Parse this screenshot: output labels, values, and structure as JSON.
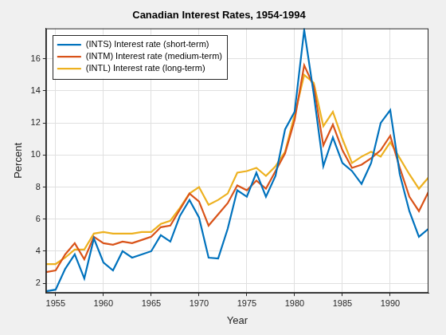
{
  "chart_data": {
    "type": "line",
    "title": "Canadian Interest Rates, 1954-1994",
    "x_label": "Year",
    "y_label": "Percent",
    "x": [
      1954,
      1955,
      1956,
      1957,
      1958,
      1959,
      1960,
      1961,
      1962,
      1963,
      1964,
      1965,
      1966,
      1967,
      1968,
      1969,
      1970,
      1971,
      1972,
      1973,
      1974,
      1975,
      1976,
      1977,
      1978,
      1979,
      1980,
      1981,
      1982,
      1983,
      1984,
      1985,
      1986,
      1987,
      1988,
      1989,
      1990,
      1991,
      1992,
      1993,
      1994
    ],
    "series": [
      {
        "name": "(INTS) Interest rate (short-term)",
        "color": "#0072bd",
        "values": [
          1.5,
          1.6,
          2.9,
          3.8,
          2.3,
          4.8,
          3.3,
          2.8,
          4.0,
          3.6,
          3.8,
          4.0,
          5.0,
          4.6,
          6.2,
          7.2,
          6.1,
          3.6,
          3.55,
          5.4,
          7.8,
          7.4,
          8.9,
          7.4,
          8.7,
          11.6,
          12.7,
          17.8,
          13.8,
          9.3,
          11.1,
          9.5,
          9.0,
          8.2,
          9.5,
          12.0,
          12.8,
          8.8,
          6.5,
          4.9,
          5.4
        ]
      },
      {
        "name": "(INTM) Interest rate (medium-term)",
        "color": "#d95319",
        "values": [
          2.7,
          2.8,
          3.8,
          4.5,
          3.5,
          4.9,
          4.5,
          4.4,
          4.6,
          4.5,
          4.7,
          4.9,
          5.5,
          5.6,
          6.6,
          7.6,
          7.1,
          5.6,
          6.3,
          7.0,
          8.1,
          7.8,
          8.4,
          7.9,
          9.0,
          10.1,
          12.2,
          15.6,
          14.3,
          10.6,
          11.9,
          10.3,
          9.2,
          9.4,
          9.8,
          10.3,
          11.2,
          9.2,
          7.4,
          6.5,
          7.7
        ]
      },
      {
        "name": "(INTL) Interest rate (long-term)",
        "color": "#edb120",
        "values": [
          3.2,
          3.2,
          3.6,
          4.1,
          4.1,
          5.1,
          5.2,
          5.1,
          5.1,
          5.1,
          5.2,
          5.2,
          5.7,
          5.9,
          6.7,
          7.6,
          8.0,
          6.9,
          7.2,
          7.6,
          8.9,
          9.0,
          9.2,
          8.7,
          9.3,
          10.2,
          12.5,
          15.0,
          14.5,
          11.8,
          12.7,
          11.0,
          9.5,
          9.9,
          10.2,
          9.9,
          10.8,
          9.8,
          8.8,
          7.9,
          8.6
        ]
      }
    ],
    "xlim": [
      1954,
      1994
    ],
    "xticks": [
      1955,
      1960,
      1965,
      1970,
      1975,
      1980,
      1985,
      1990
    ],
    "ylim": [
      1.4,
      17.9
    ],
    "yticks": [
      2,
      4,
      6,
      8,
      10,
      12,
      14,
      16
    ],
    "grid": true,
    "legend": "upper left"
  }
}
